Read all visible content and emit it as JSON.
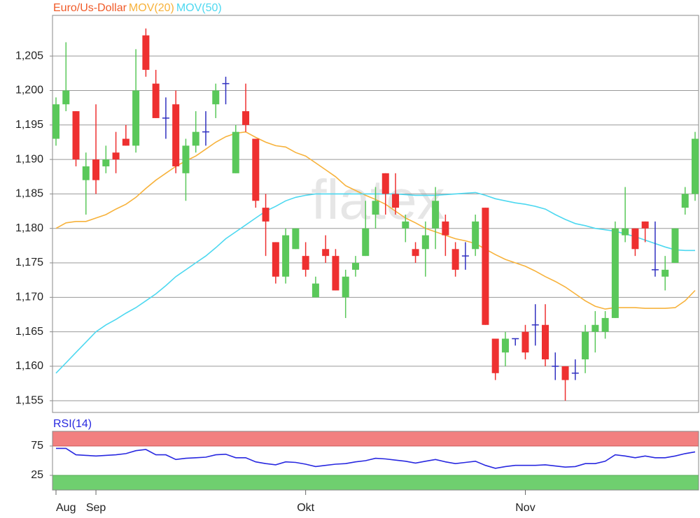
{
  "chart_data": [
    {
      "type": "candlestick",
      "watermark": "flatex",
      "categories": [
        "Aug",
        null,
        null,
        null,
        "Sep",
        null,
        null,
        null,
        null,
        null,
        null,
        null,
        null,
        null,
        null,
        null,
        null,
        null,
        null,
        null,
        null,
        null,
        null,
        null,
        null,
        "Okt",
        null,
        null,
        null,
        null,
        null,
        null,
        null,
        null,
        null,
        null,
        null,
        null,
        null,
        null,
        null,
        null,
        null,
        null,
        null,
        null,
        null,
        "Nov",
        null,
        null,
        null,
        null,
        null,
        null,
        null,
        null,
        null,
        null,
        null,
        null,
        null,
        null,
        null,
        null,
        null
      ],
      "ohlc": {
        "name": "Euro/Us-Dollar",
        "color": "#f05a28",
        "up_color": "#5ac85a",
        "down_color": "#ee3030",
        "doji_color": "#3030c0",
        "open": [
          1.193,
          1.198,
          1.197,
          1.187,
          1.19,
          1.189,
          1.191,
          1.193,
          1.192,
          1.208,
          1.201,
          1.196,
          1.198,
          1.188,
          1.192,
          1.194,
          1.198,
          1.201,
          1.188,
          1.197,
          1.193,
          1.183,
          1.178,
          1.173,
          1.177,
          1.176,
          1.17,
          1.177,
          1.176,
          1.17,
          1.174,
          1.176,
          1.182,
          1.188,
          1.185,
          1.18,
          1.177,
          1.177,
          1.18,
          1.181,
          1.177,
          1.176,
          1.177,
          1.183,
          1.164,
          1.162,
          1.164,
          1.165,
          1.166,
          1.166,
          1.16,
          1.16,
          1.159,
          1.161,
          1.165,
          1.165,
          1.167,
          1.179,
          1.18,
          1.181,
          1.174,
          1.173,
          1.175,
          1.183,
          1.185
        ],
        "high": [
          1.199,
          1.207,
          1.197,
          1.191,
          1.198,
          1.192,
          1.194,
          1.195,
          1.206,
          1.209,
          1.203,
          1.199,
          1.2,
          1.193,
          1.197,
          1.197,
          1.201,
          1.202,
          1.195,
          1.201,
          1.193,
          1.185,
          1.178,
          1.18,
          1.18,
          1.178,
          1.173,
          1.179,
          1.177,
          1.174,
          1.176,
          1.184,
          1.186,
          1.188,
          1.188,
          1.182,
          1.178,
          1.181,
          1.186,
          1.182,
          1.178,
          1.178,
          1.182,
          1.183,
          1.164,
          1.165,
          1.164,
          1.166,
          1.169,
          1.169,
          1.162,
          1.16,
          1.161,
          1.166,
          1.168,
          1.168,
          1.181,
          1.186,
          1.18,
          1.181,
          1.181,
          1.176,
          1.18,
          1.186,
          1.194
        ],
        "low": [
          1.192,
          1.197,
          1.189,
          1.182,
          1.185,
          1.188,
          1.188,
          1.192,
          1.191,
          1.202,
          1.196,
          1.193,
          1.188,
          1.184,
          1.191,
          1.192,
          1.196,
          1.198,
          1.188,
          1.194,
          1.183,
          1.176,
          1.172,
          1.172,
          1.177,
          1.173,
          1.17,
          1.175,
          1.171,
          1.167,
          1.173,
          1.176,
          1.18,
          1.182,
          1.182,
          1.178,
          1.175,
          1.173,
          1.177,
          1.176,
          1.173,
          1.174,
          1.176,
          1.166,
          1.158,
          1.16,
          1.163,
          1.161,
          1.163,
          1.16,
          1.158,
          1.155,
          1.158,
          1.159,
          1.162,
          1.164,
          1.167,
          1.178,
          1.176,
          1.178,
          1.173,
          1.171,
          1.175,
          1.182,
          1.184
        ],
        "close": [
          1.198,
          1.2,
          1.19,
          1.189,
          1.187,
          1.19,
          1.19,
          1.192,
          1.2,
          1.203,
          1.196,
          1.196,
          1.189,
          1.192,
          1.194,
          1.194,
          1.2,
          1.201,
          1.194,
          1.195,
          1.184,
          1.181,
          1.173,
          1.179,
          1.18,
          1.174,
          1.172,
          1.176,
          1.171,
          1.173,
          1.175,
          1.18,
          1.184,
          1.185,
          1.183,
          1.181,
          1.176,
          1.179,
          1.184,
          1.179,
          1.174,
          1.176,
          1.181,
          1.166,
          1.159,
          1.164,
          1.164,
          1.162,
          1.166,
          1.161,
          1.16,
          1.158,
          1.159,
          1.165,
          1.166,
          1.167,
          1.18,
          1.18,
          1.177,
          1.18,
          1.174,
          1.174,
          1.18,
          1.185,
          1.193
        ]
      },
      "series": [
        {
          "name": "MOV(20)",
          "color": "#f7b23b",
          "values": [
            1.18,
            1.1808,
            1.181,
            1.181,
            1.1815,
            1.182,
            1.1828,
            1.1835,
            1.1845,
            1.1858,
            1.187,
            1.188,
            1.189,
            1.1898,
            1.1905,
            1.1915,
            1.1925,
            1.1933,
            1.1938,
            1.194,
            1.1932,
            1.1925,
            1.192,
            1.1918,
            1.191,
            1.1905,
            1.1895,
            1.1885,
            1.1875,
            1.1862,
            1.1855,
            1.1848,
            1.1842,
            1.1835,
            1.1825,
            1.1815,
            1.1808,
            1.18,
            1.1795,
            1.179,
            1.1785,
            1.1782,
            1.1778,
            1.177,
            1.1762,
            1.1755,
            1.175,
            1.1745,
            1.1738,
            1.173,
            1.1723,
            1.1715,
            1.1705,
            1.1695,
            1.1687,
            1.1683,
            1.1685,
            1.1685,
            1.1685,
            1.1684,
            1.1684,
            1.1684,
            1.1685,
            1.1695,
            1.171
          ]
        },
        {
          "name": "MOV(50)",
          "color": "#4dd8f0",
          "values": [
            1.159,
            1.1605,
            1.162,
            1.1635,
            1.165,
            1.166,
            1.1668,
            1.1677,
            1.1685,
            1.1695,
            1.1705,
            1.1717,
            1.173,
            1.174,
            1.175,
            1.176,
            1.1772,
            1.1785,
            1.1795,
            1.1805,
            1.1815,
            1.1825,
            1.1832,
            1.184,
            1.1845,
            1.1848,
            1.185,
            1.185,
            1.185,
            1.185,
            1.185,
            1.185,
            1.185,
            1.185,
            1.185,
            1.1849,
            1.1848,
            1.1848,
            1.1848,
            1.1849,
            1.185,
            1.1851,
            1.1852,
            1.1848,
            1.1843,
            1.184,
            1.1837,
            1.1835,
            1.1832,
            1.1828,
            1.182,
            1.1813,
            1.1807,
            1.1804,
            1.18,
            1.1798,
            1.1796,
            1.1792,
            1.1788,
            1.1783,
            1.1778,
            1.1773,
            1.1769,
            1.1768,
            1.1768
          ]
        }
      ],
      "ylim": [
        1.1533,
        1.2109
      ],
      "yticks": [
        {
          "value": 1.155,
          "label": "1,155"
        },
        {
          "value": 1.16,
          "label": "1,160"
        },
        {
          "value": 1.165,
          "label": "1,165"
        },
        {
          "value": 1.17,
          "label": "1,170"
        },
        {
          "value": 1.175,
          "label": "1,175"
        },
        {
          "value": 1.18,
          "label": "1,180"
        },
        {
          "value": 1.185,
          "label": "1,185"
        },
        {
          "value": 1.19,
          "label": "1,190"
        },
        {
          "value": 1.195,
          "label": "1,195"
        },
        {
          "value": 1.2,
          "label": "1,200"
        },
        {
          "value": 1.205,
          "label": "1,205"
        }
      ],
      "grid": true
    },
    {
      "type": "line",
      "series": [
        {
          "name": "RSI(14)",
          "color": "#2828e0",
          "values": [
            71,
            71,
            60,
            59,
            58,
            59,
            60,
            62,
            67,
            69,
            60,
            60,
            52,
            54,
            55,
            56,
            60,
            61,
            55,
            55,
            48,
            45,
            43,
            48,
            47,
            44,
            40,
            42,
            44,
            45,
            48,
            50,
            54,
            53,
            51,
            49,
            46,
            49,
            52,
            48,
            45,
            47,
            49,
            42,
            37,
            40,
            42,
            42,
            42,
            43,
            41,
            39,
            40,
            45,
            45,
            49,
            60,
            58,
            55,
            58,
            55,
            55,
            58,
            62,
            65
          ]
        }
      ],
      "ylim": [
        0,
        100
      ],
      "yticks": [
        25,
        75
      ],
      "band_colors": [
        "#6fcf6f",
        "#f28080"
      ]
    }
  ]
}
